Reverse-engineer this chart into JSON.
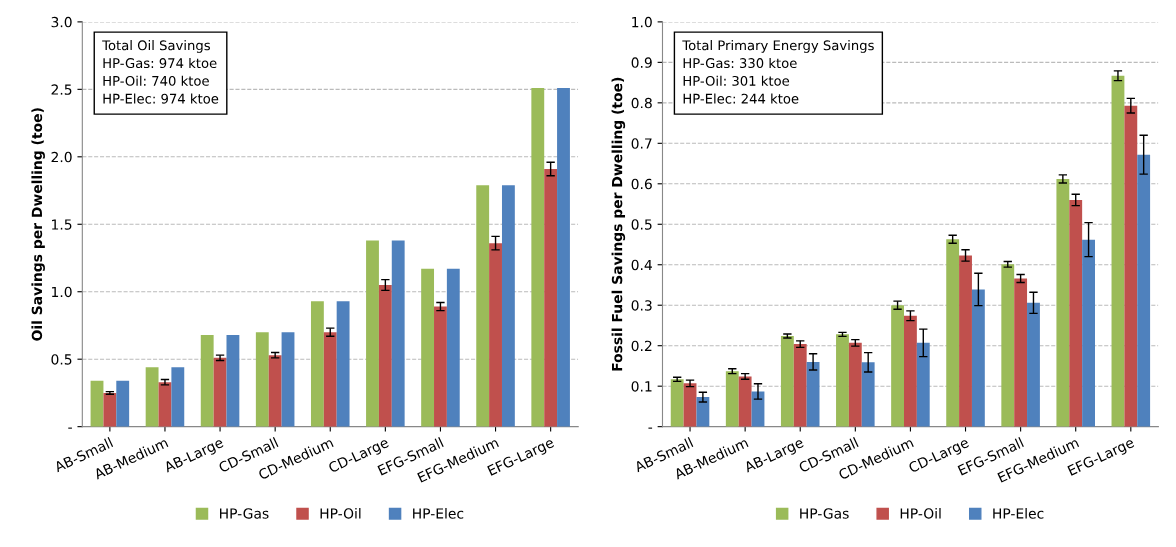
{
  "chart_data": [
    {
      "type": "bar",
      "ylabel": "Oil Savings per Dwelling (toe)",
      "categories": [
        "AB-Small",
        "AB-Medium",
        "AB-Large",
        "CD-Small",
        "CD-Medium",
        "CD-Large",
        "EFG-Small",
        "EFG-Medium",
        "EFG-Large"
      ],
      "series": [
        {
          "name": "HP-Gas",
          "color": "#9bbb59",
          "values": [
            0.34,
            0.44,
            0.68,
            0.7,
            0.93,
            1.38,
            1.17,
            1.79,
            2.51
          ]
        },
        {
          "name": "HP-Oil",
          "color": "#c0504d",
          "values": [
            0.25,
            0.33,
            0.51,
            0.53,
            0.7,
            1.05,
            0.89,
            1.36,
            1.91
          ],
          "errors": [
            0.01,
            0.02,
            0.02,
            0.02,
            0.03,
            0.04,
            0.03,
            0.05,
            0.05
          ]
        },
        {
          "name": "HP-Elec",
          "color": "#4f81bd",
          "values": [
            0.34,
            0.44,
            0.68,
            0.7,
            0.93,
            1.38,
            1.17,
            1.79,
            2.51
          ]
        }
      ],
      "ylim": [
        0,
        3.0
      ],
      "yticks": [
        {
          "value": 0,
          "label": "-"
        },
        {
          "value": 0.5,
          "label": "0.5"
        },
        {
          "value": 1.0,
          "label": "1.0"
        },
        {
          "value": 1.5,
          "label": "1.5"
        },
        {
          "value": 2.0,
          "label": "2.0"
        },
        {
          "value": 2.5,
          "label": "2.5"
        },
        {
          "value": 3.0,
          "label": "3.0"
        }
      ],
      "grid": "y",
      "legend": "bottom",
      "annotations": [
        "Total Oil Savings",
        "HP-Gas: 974 ktoe",
        "HP-Oil: 740 ktoe",
        "HP-Elec: 974 ktoe"
      ]
    },
    {
      "type": "bar",
      "ylabel": "Fossil Fuel Savings per Dwelling (toe)",
      "categories": [
        "AB-Small",
        "AB-Medium",
        "AB-Large",
        "CD-Small",
        "CD-Medium",
        "CD-Large",
        "EFG-Small",
        "EFG-Medium",
        "EFG-Large"
      ],
      "series": [
        {
          "name": "HP-Gas",
          "color": "#9bbb59",
          "values": [
            0.117,
            0.137,
            0.224,
            0.228,
            0.3,
            0.463,
            0.401,
            0.612,
            0.867
          ],
          "errors": [
            0.005,
            0.006,
            0.005,
            0.005,
            0.01,
            0.01,
            0.007,
            0.01,
            0.012
          ]
        },
        {
          "name": "HP-Oil",
          "color": "#c0504d",
          "values": [
            0.107,
            0.124,
            0.204,
            0.207,
            0.274,
            0.423,
            0.366,
            0.56,
            0.793
          ],
          "errors": [
            0.008,
            0.007,
            0.008,
            0.008,
            0.012,
            0.014,
            0.01,
            0.014,
            0.018
          ]
        },
        {
          "name": "HP-Elec",
          "color": "#4f81bd",
          "values": [
            0.073,
            0.087,
            0.16,
            0.159,
            0.207,
            0.339,
            0.306,
            0.462,
            0.672
          ],
          "errors": [
            0.012,
            0.019,
            0.02,
            0.024,
            0.034,
            0.04,
            0.026,
            0.042,
            0.048
          ]
        }
      ],
      "ylim": [
        0,
        1.0
      ],
      "yticks": [
        {
          "value": 0,
          "label": "-"
        },
        {
          "value": 0.1,
          "label": "0.1"
        },
        {
          "value": 0.2,
          "label": "0.2"
        },
        {
          "value": 0.3,
          "label": "0.3"
        },
        {
          "value": 0.4,
          "label": "0.4"
        },
        {
          "value": 0.5,
          "label": "0.5"
        },
        {
          "value": 0.6,
          "label": "0.6"
        },
        {
          "value": 0.7,
          "label": "0.7"
        },
        {
          "value": 0.8,
          "label": "0.8"
        },
        {
          "value": 0.9,
          "label": "0.9"
        },
        {
          "value": 1.0,
          "label": "1.0"
        }
      ],
      "grid": "y",
      "legend": "bottom",
      "annotations": [
        "Total Primary Energy Savings",
        "HP-Gas: 330 ktoe",
        "HP-Oil: 301 ktoe",
        "HP-Elec: 244 ktoe"
      ]
    }
  ]
}
